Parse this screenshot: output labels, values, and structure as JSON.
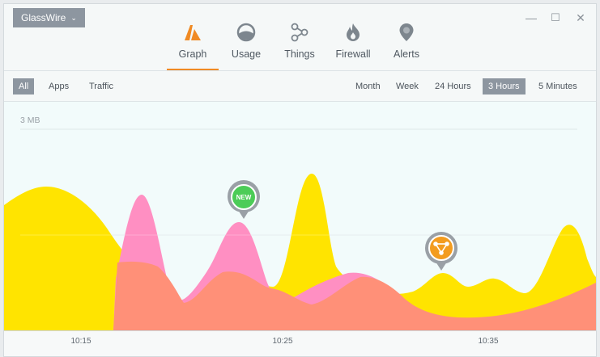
{
  "app": {
    "menu_label": "GlassWire"
  },
  "window_controls": {
    "minimize": "—",
    "maximize": "☐",
    "close": "✕"
  },
  "nav": {
    "tabs": [
      {
        "label": "Graph",
        "icon": "graph-icon",
        "active": true
      },
      {
        "label": "Usage",
        "icon": "usage-icon",
        "active": false
      },
      {
        "label": "Things",
        "icon": "things-icon",
        "active": false
      },
      {
        "label": "Firewall",
        "icon": "firewall-icon",
        "active": false
      },
      {
        "label": "Alerts",
        "icon": "alerts-icon",
        "active": false
      }
    ]
  },
  "filters": {
    "left": [
      {
        "label": "All",
        "selected": true
      },
      {
        "label": "Apps",
        "selected": false
      },
      {
        "label": "Traffic",
        "selected": false
      }
    ],
    "right": [
      {
        "label": "Month",
        "selected": false
      },
      {
        "label": "Week",
        "selected": false
      },
      {
        "label": "24 Hours",
        "selected": false
      },
      {
        "label": "3 Hours",
        "selected": true
      },
      {
        "label": "5 Minutes",
        "selected": false
      }
    ]
  },
  "graph": {
    "scale_label": "3 MB",
    "ticks": [
      "10:15",
      "10:25",
      "10:35"
    ],
    "markers": [
      {
        "label": "NEW",
        "kind": "new-host",
        "color": "#4ccc57"
      },
      {
        "kind": "network-alert",
        "color": "#f39c1f"
      }
    ],
    "colors": {
      "incoming": "#ffe400",
      "outgoing": "#ff8fc2"
    }
  }
}
